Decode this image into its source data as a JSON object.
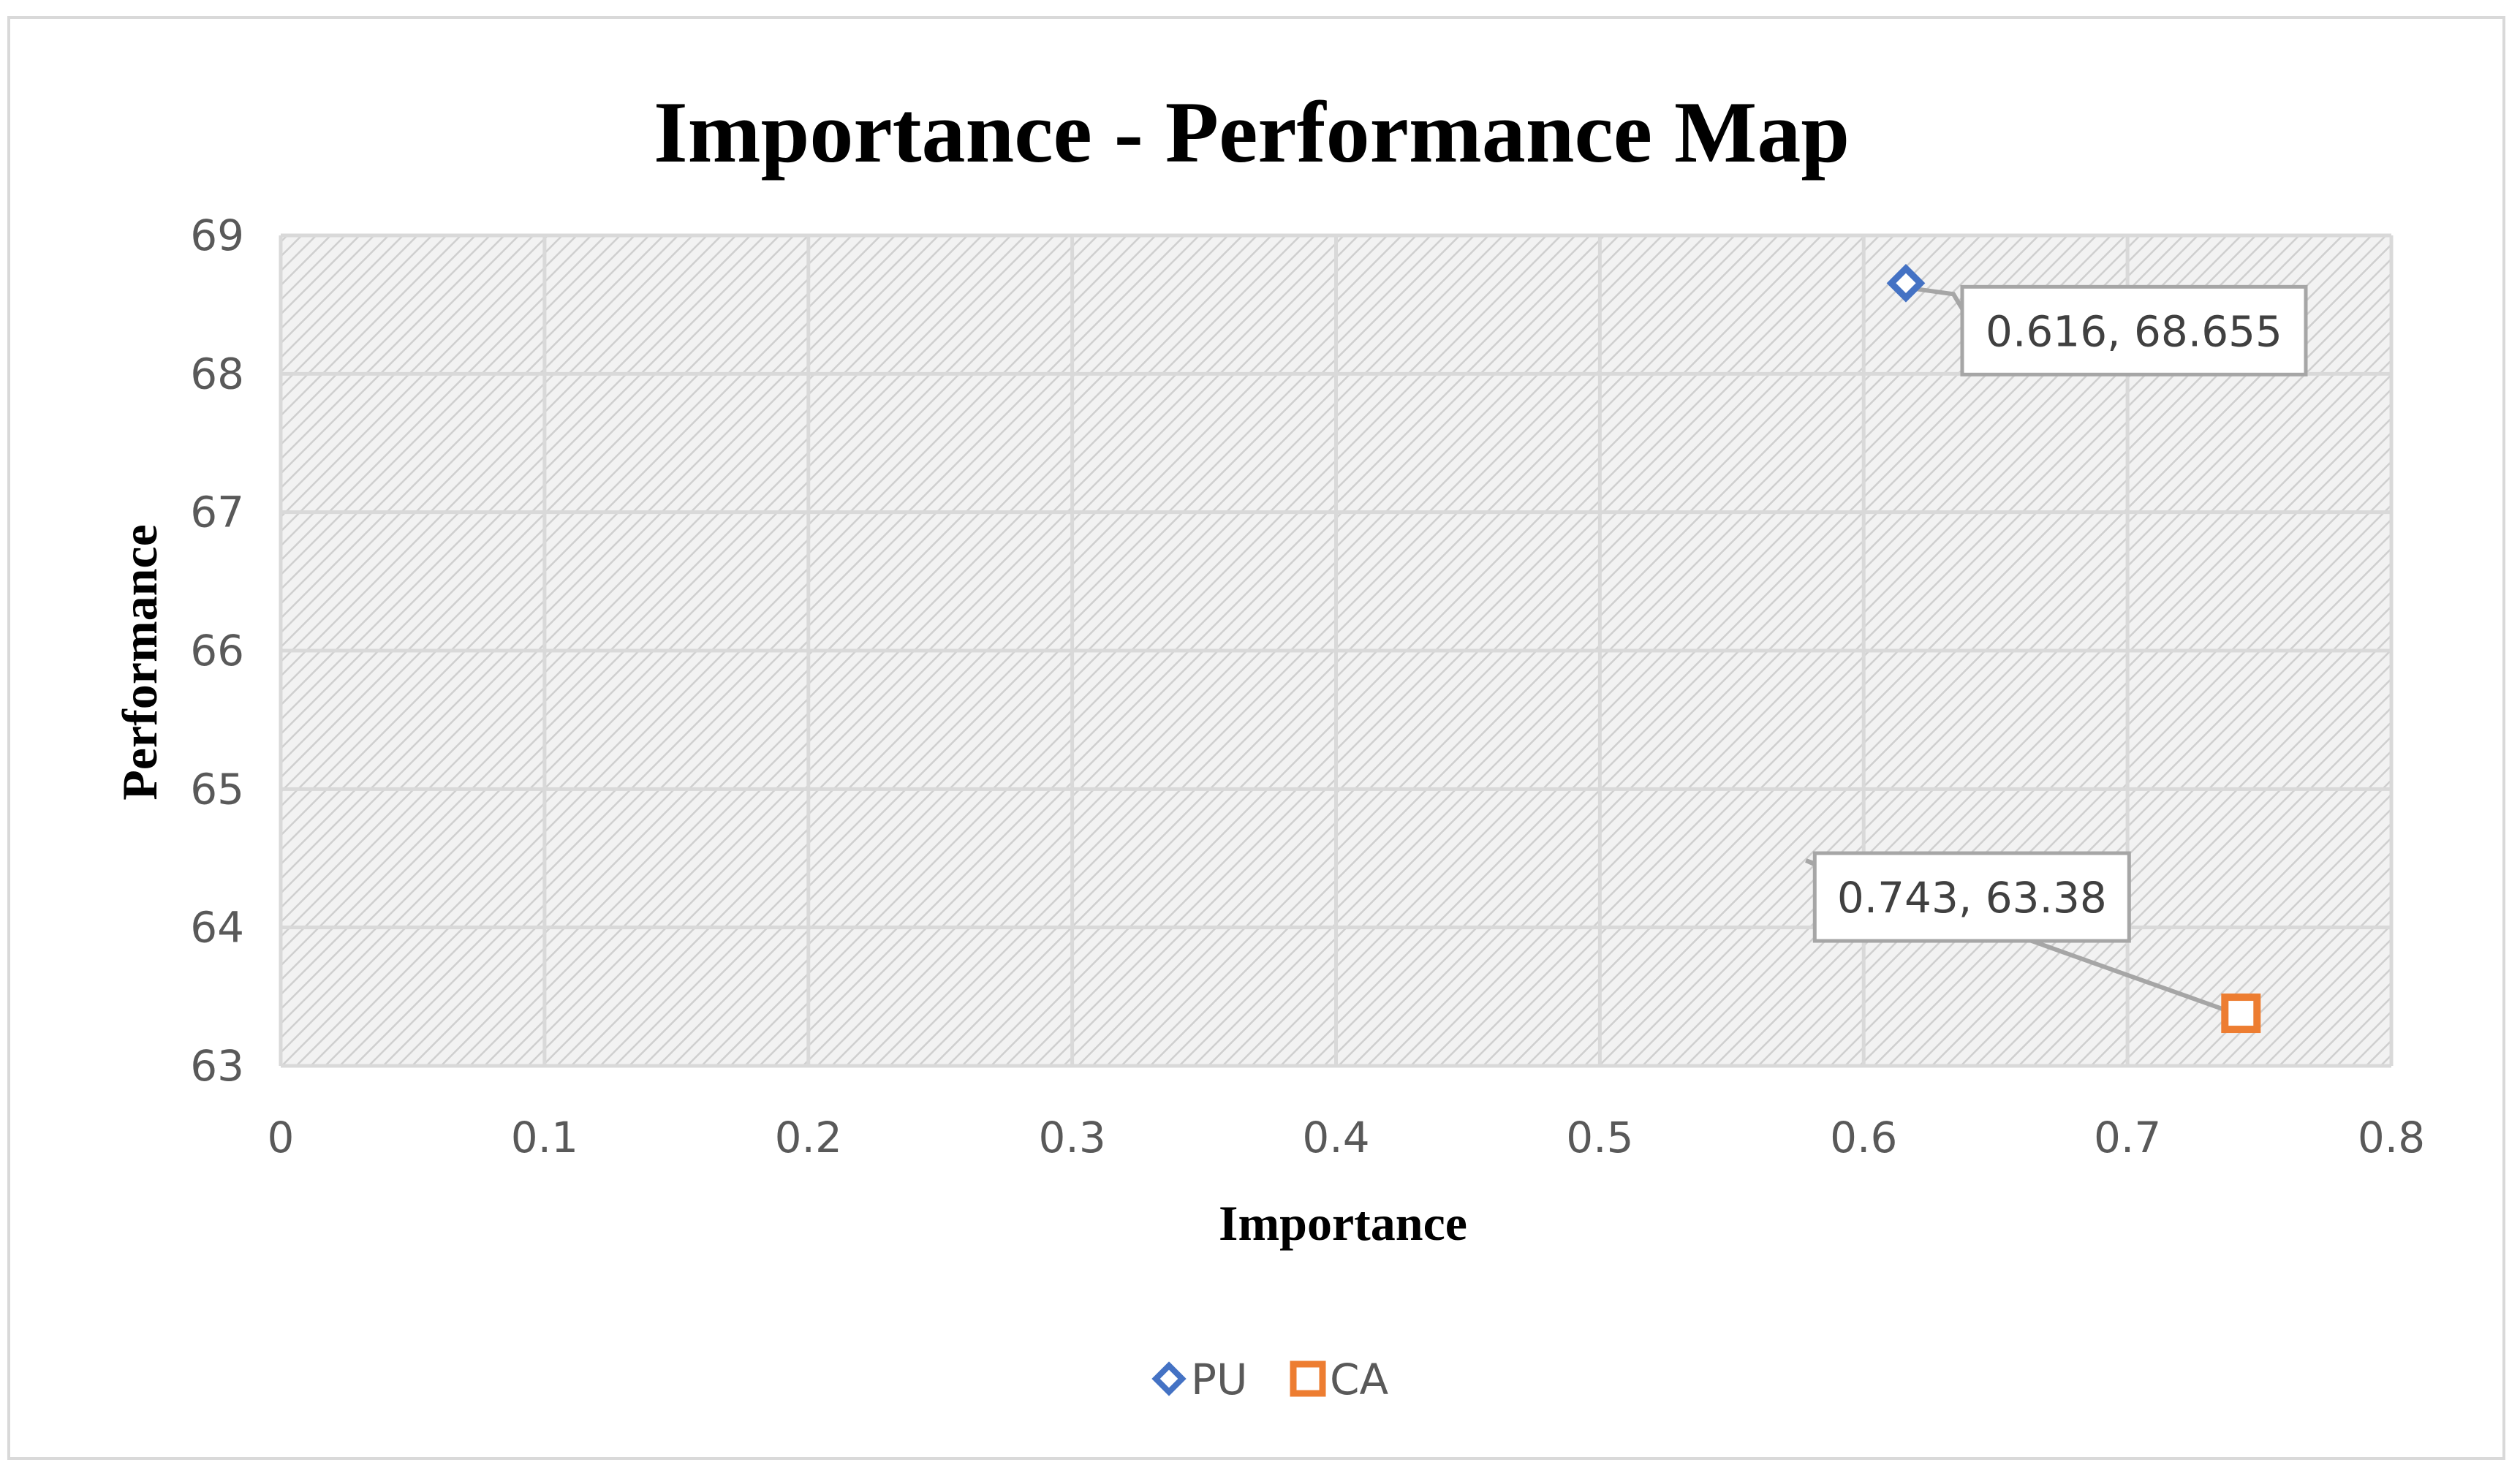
{
  "chart_data": {
    "type": "scatter",
    "title": "Importance - Performance Map",
    "xlabel": "Importance",
    "ylabel": "Performance",
    "xlim": [
      0,
      0.8
    ],
    "ylim": [
      63,
      69
    ],
    "xticks": [
      "0",
      "0.1",
      "0.2",
      "0.3",
      "0.4",
      "0.5",
      "0.6",
      "0.7",
      "0.8"
    ],
    "yticks": [
      "63",
      "64",
      "65",
      "66",
      "67",
      "68",
      "69"
    ],
    "grid": true,
    "legend_position": "bottom",
    "series": [
      {
        "name": "PU",
        "marker": "diamond",
        "color": "#4472c4",
        "x": 0.616,
        "y": 68.655,
        "label": "0.616, 68.655"
      },
      {
        "name": "CA",
        "marker": "square",
        "color": "#ed7d31",
        "x": 0.743,
        "y": 63.38,
        "label": "0.743, 63.38"
      }
    ]
  }
}
